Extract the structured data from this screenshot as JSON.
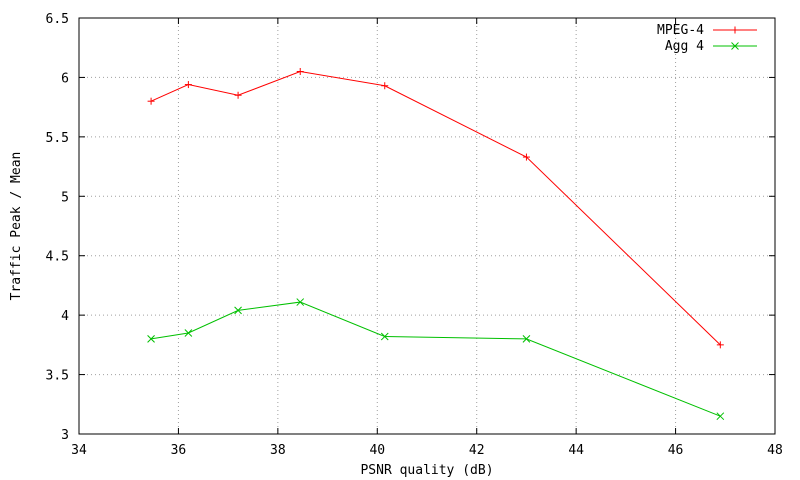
{
  "chart_data": {
    "type": "line",
    "xlabel": "PSNR quality (dB)",
    "ylabel": "Traffic Peak / Mean",
    "xlim": [
      34,
      48
    ],
    "ylim": [
      3,
      6.5
    ],
    "xticks": [
      "34",
      "36",
      "38",
      "40",
      "42",
      "44",
      "46",
      "48"
    ],
    "yticks": [
      "3",
      "3.5",
      "4",
      "4.5",
      "5",
      "5.5",
      "6",
      "6.5"
    ],
    "grid": true,
    "legend_position": "top-right",
    "series": [
      {
        "name": "MPEG-4",
        "color": "#ff0000",
        "marker": "plus",
        "points": [
          [
            35.45,
            5.8
          ],
          [
            36.2,
            5.94
          ],
          [
            37.2,
            5.85
          ],
          [
            38.45,
            6.05
          ],
          [
            40.15,
            5.93
          ],
          [
            43.0,
            5.33
          ],
          [
            46.9,
            3.75
          ]
        ]
      },
      {
        "name": "Agg 4",
        "color": "#00c000",
        "marker": "cross",
        "points": [
          [
            35.45,
            3.8
          ],
          [
            36.2,
            3.85
          ],
          [
            37.2,
            4.04
          ],
          [
            38.45,
            4.11
          ],
          [
            40.15,
            3.82
          ],
          [
            43.0,
            3.8
          ],
          [
            46.9,
            3.15
          ]
        ]
      }
    ]
  }
}
